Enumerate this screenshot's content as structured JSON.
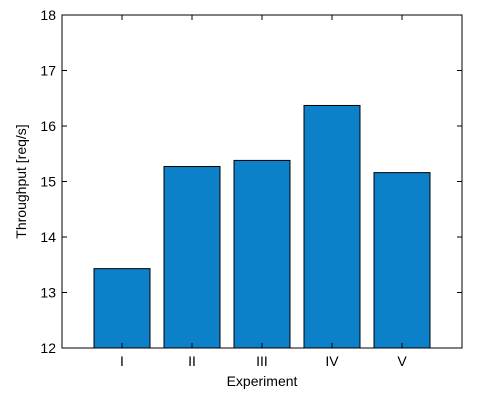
{
  "chart_data": {
    "type": "bar",
    "categories": [
      "I",
      "II",
      "III",
      "IV",
      "V"
    ],
    "values": [
      13.43,
      15.27,
      15.38,
      16.37,
      15.16
    ],
    "title": "",
    "xlabel": "Experiment",
    "ylabel": "Throughput [req/s]",
    "ylim": [
      12,
      18
    ],
    "yticks": [
      12,
      13,
      14,
      15,
      16,
      17,
      18
    ],
    "grid": false,
    "bar_color": "#0c80c8",
    "bar_edge_color": "#000000"
  }
}
